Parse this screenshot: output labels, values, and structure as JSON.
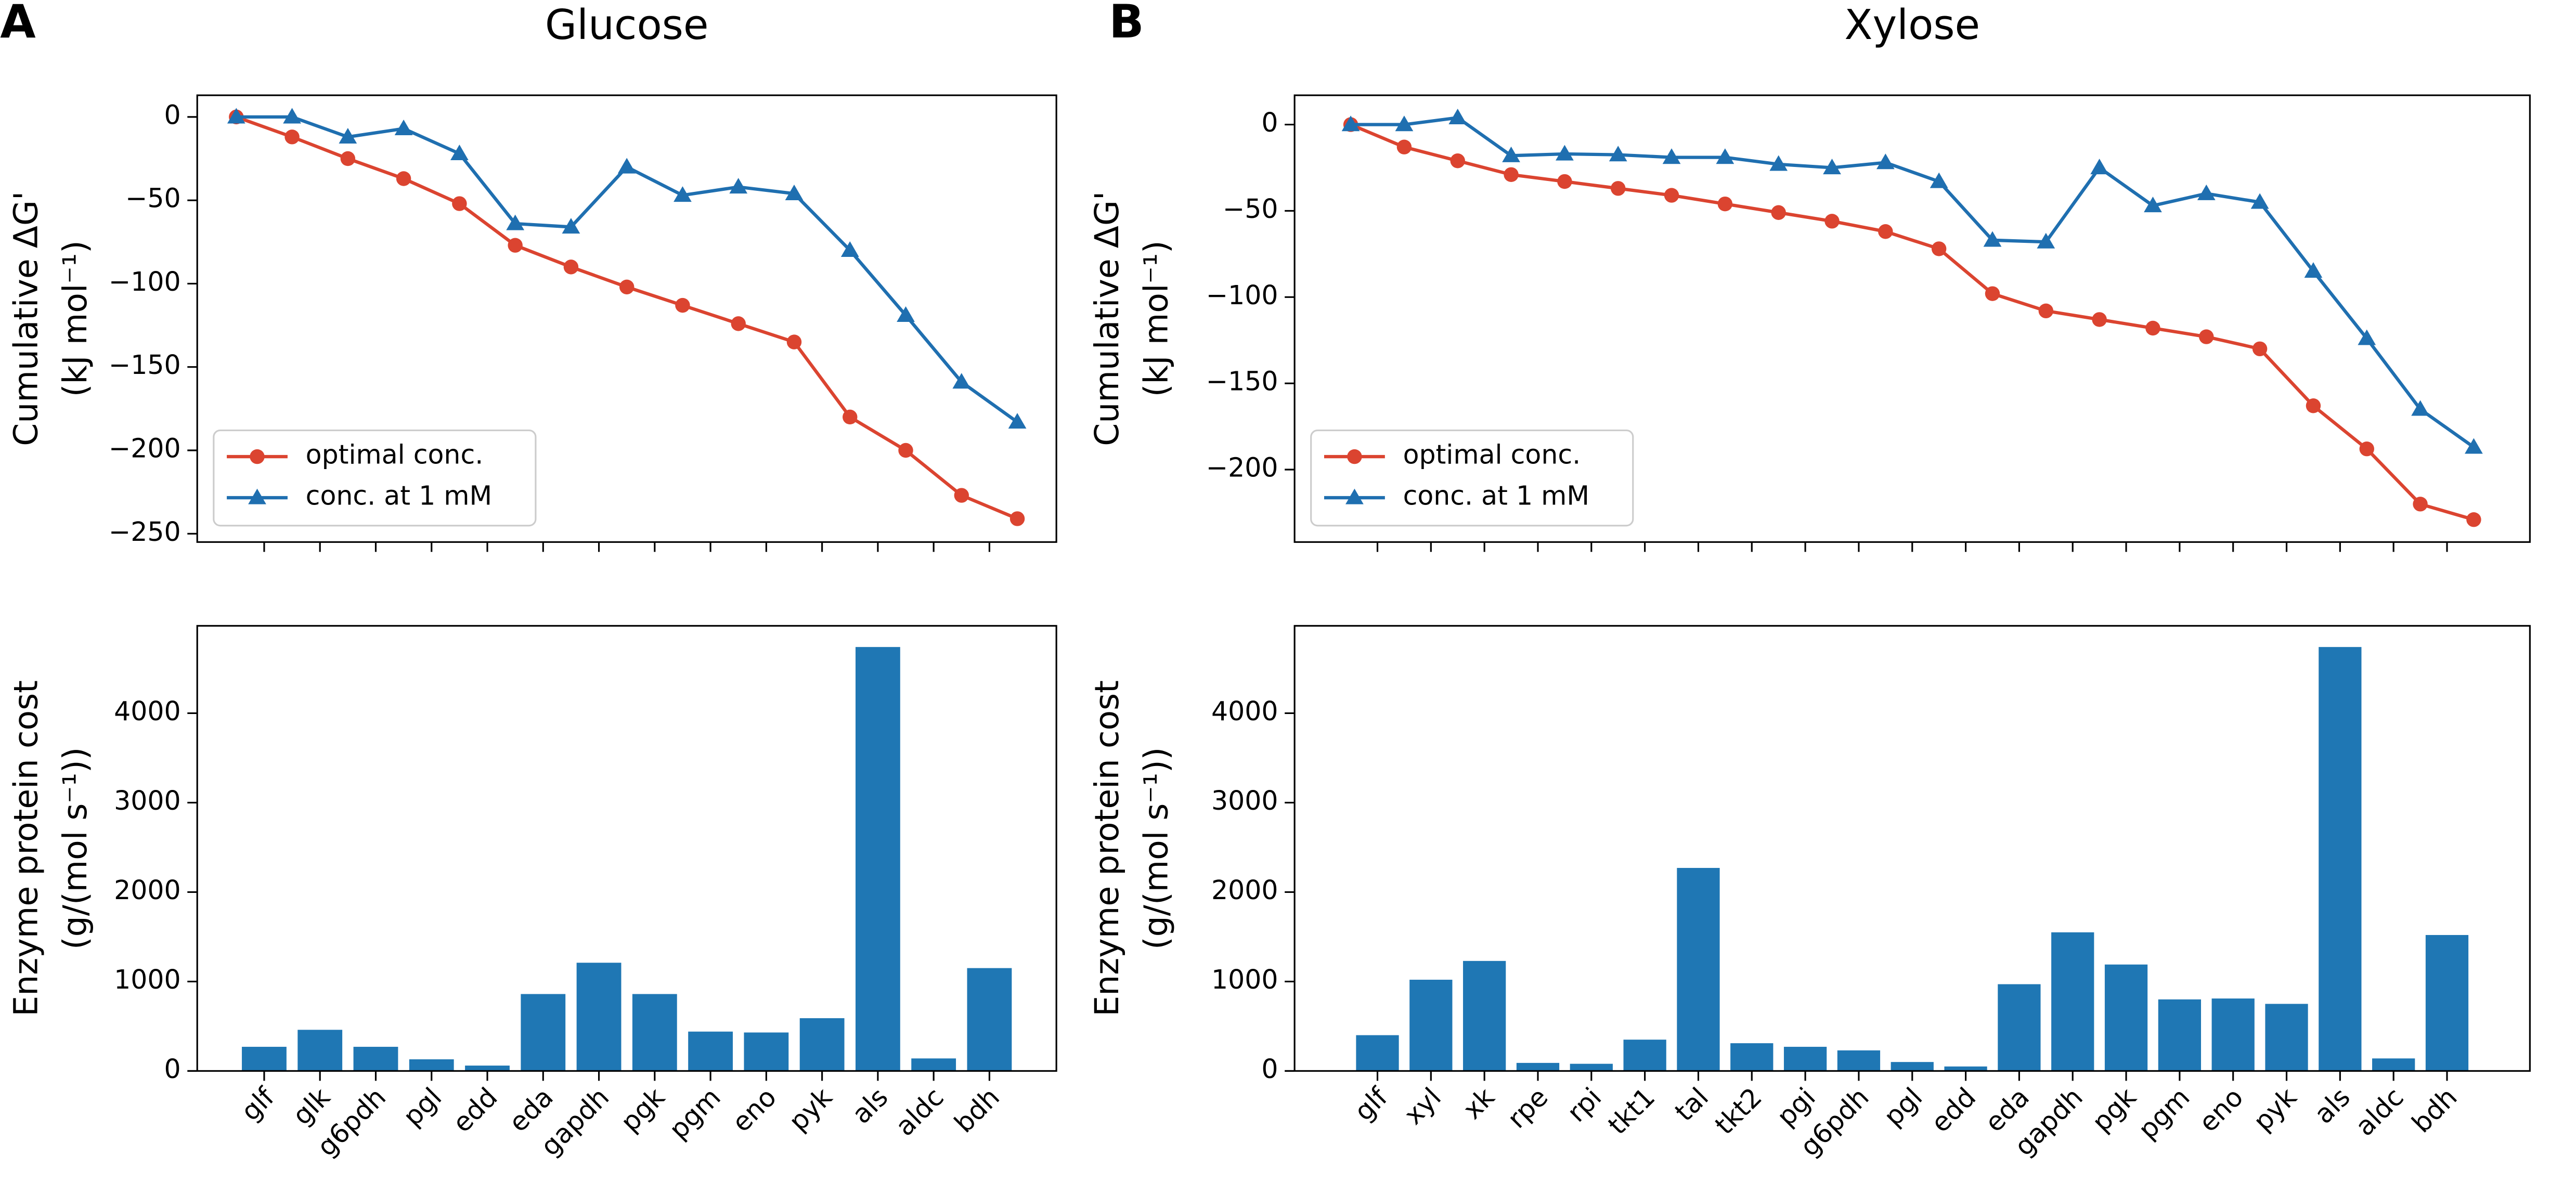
{
  "chart_data": [
    {
      "type": "line",
      "label": "A",
      "title": "Glucose",
      "ylabel": [
        "Cumulative ΔG'",
        "(kJ mol⁻¹)"
      ],
      "ylim": [
        -255,
        13
      ],
      "yticks": [
        {
          "value": 0,
          "label": "0"
        },
        {
          "value": -50,
          "label": "−50"
        },
        {
          "value": -100,
          "label": "−100"
        },
        {
          "value": -150,
          "label": "−150"
        },
        {
          "value": -200,
          "label": "−200"
        },
        {
          "value": -250,
          "label": "−250"
        }
      ],
      "legend": "lower left",
      "series": [
        {
          "name": "optimal conc.",
          "color": "#db4430",
          "marker": "circle",
          "values": [
            0,
            -12,
            -25,
            -37,
            -52,
            -77,
            -90,
            -102,
            -113,
            -124,
            -135,
            -180,
            -200,
            -227,
            -241
          ]
        },
        {
          "name": "conc. at 1 mM",
          "color": "#1f6fb0",
          "marker": "triangle",
          "values": [
            0,
            0,
            -12,
            -7,
            -22,
            -64,
            -66,
            -30,
            -47,
            -42,
            -46,
            -80,
            -119,
            -159,
            -183
          ]
        }
      ]
    },
    {
      "type": "bar",
      "ylabel": [
        "Enzyme protein cost",
        "(g/(mol s⁻¹))"
      ],
      "color": "#1f77b4",
      "categories": [
        "glf",
        "glk",
        "g6pdh",
        "pgl",
        "edd",
        "eda",
        "gapdh",
        "pgk",
        "pgm",
        "eno",
        "pyk",
        "als",
        "aldc",
        "bdh"
      ],
      "values": [
        270,
        460,
        270,
        130,
        60,
        860,
        1210,
        860,
        440,
        430,
        590,
        4740,
        140,
        1150
      ],
      "ylim": [
        0,
        4977
      ],
      "yticks": [
        0,
        1000,
        2000,
        3000,
        4000
      ]
    },
    {
      "type": "line",
      "label": "B",
      "title": "Xylose",
      "ylabel": [
        "Cumulative ΔG'",
        "(kJ mol⁻¹)"
      ],
      "ylim": [
        -242,
        17
      ],
      "yticks": [
        {
          "value": 0,
          "label": "0"
        },
        {
          "value": -50,
          "label": "−50"
        },
        {
          "value": -100,
          "label": "−100"
        },
        {
          "value": -150,
          "label": "−150"
        },
        {
          "value": -200,
          "label": "−200"
        }
      ],
      "legend": "lower left",
      "series": [
        {
          "name": "optimal conc.",
          "color": "#db4430",
          "marker": "circle",
          "values": [
            0,
            -13,
            -21,
            -29,
            -33,
            -37,
            -41,
            -46,
            -51,
            -56,
            -62,
            -72,
            -98,
            -108,
            -113,
            -118,
            -123,
            -130,
            -163,
            -188,
            -220,
            -229
          ]
        },
        {
          "name": "conc. at 1 mM",
          "color": "#1f6fb0",
          "marker": "triangle",
          "values": [
            0,
            0,
            4,
            -18,
            -17,
            -17.5,
            -19,
            -19,
            -23,
            -25,
            -22,
            -33,
            -67,
            -68,
            -25,
            -47,
            -40,
            -45,
            -85,
            -124,
            -165,
            -187
          ]
        }
      ]
    },
    {
      "type": "bar",
      "ylabel": [
        "Enzyme protein cost",
        "(g/(mol s⁻¹))"
      ],
      "color": "#1f77b4",
      "categories": [
        "glf",
        "xyl",
        "xk",
        "rpe",
        "rpi",
        "tkt1",
        "tal",
        "tkt2",
        "pgi",
        "g6pdh",
        "pgl",
        "edd",
        "eda",
        "gapdh",
        "pgk",
        "pgm",
        "eno",
        "pyk",
        "als",
        "aldc",
        "bdh"
      ],
      "values": [
        400,
        1020,
        1230,
        90,
        80,
        350,
        2270,
        310,
        270,
        230,
        100,
        50,
        970,
        1550,
        1190,
        800,
        810,
        750,
        4740,
        140,
        1520
      ],
      "ylim": [
        0,
        4977
      ],
      "yticks": [
        0,
        1000,
        2000,
        3000,
        4000
      ]
    }
  ]
}
